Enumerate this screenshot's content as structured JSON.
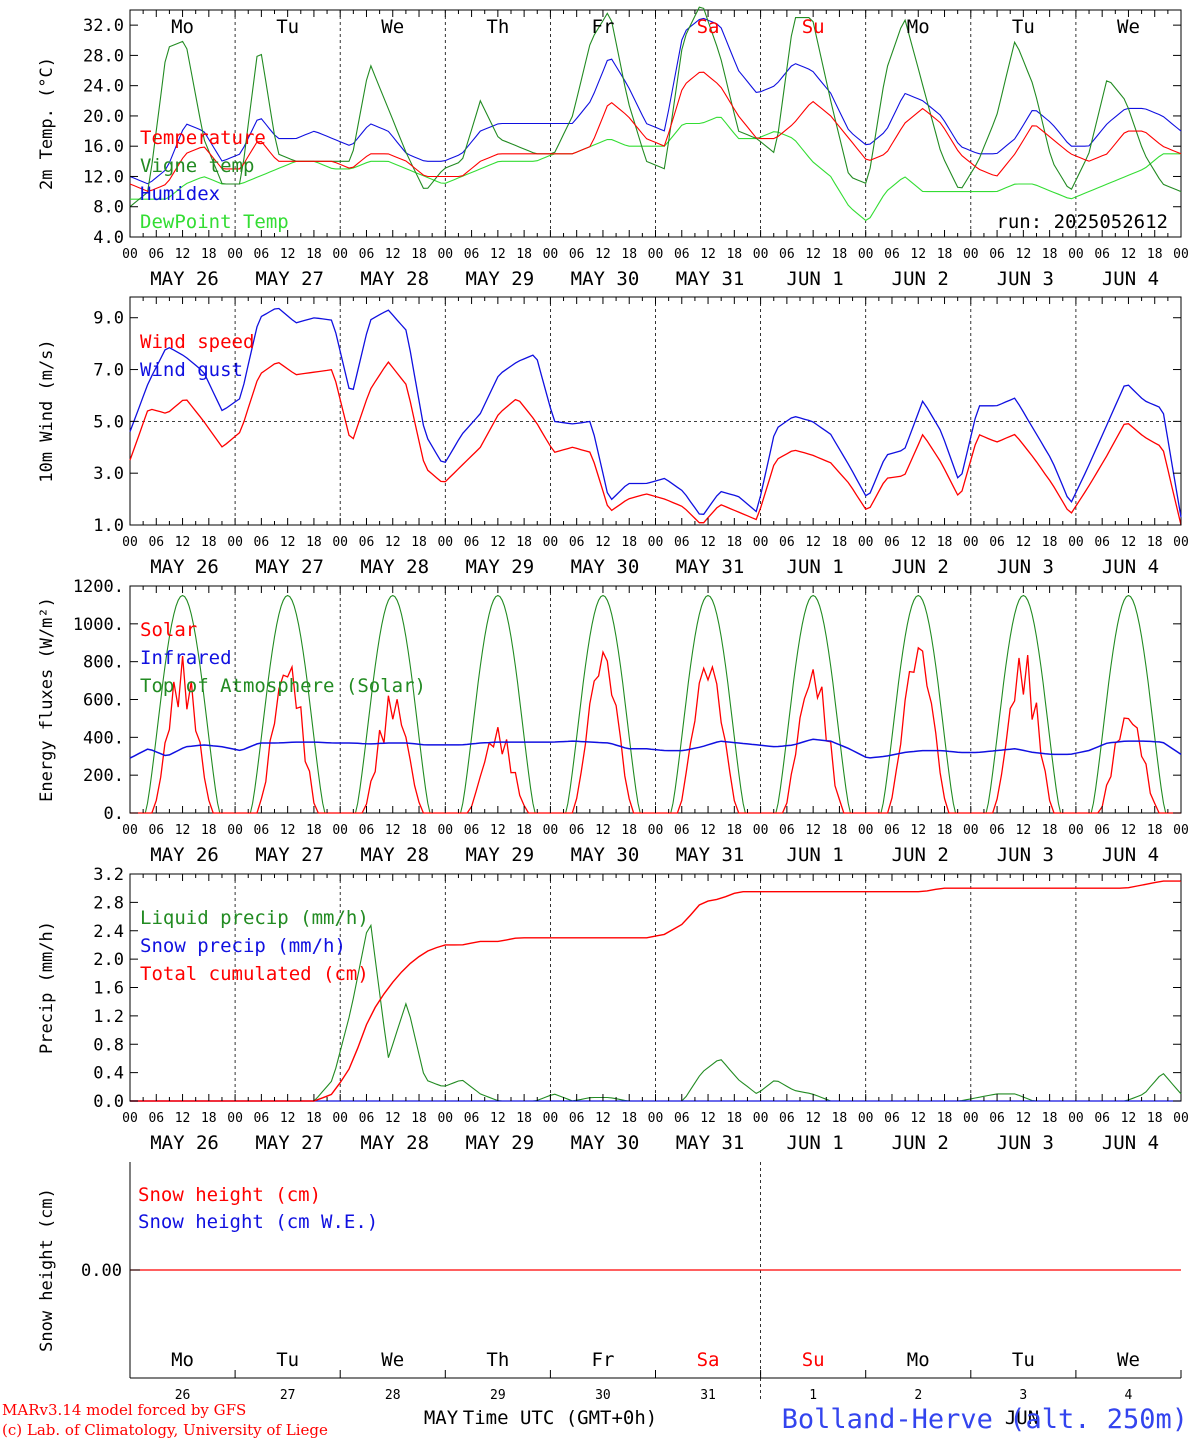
{
  "colors": {
    "red": "#ff0000",
    "green": "#228b22",
    "blue": "#1010e0",
    "lightgreen": "#33dd33",
    "axis": "#000000"
  },
  "days": {
    "weekdays": [
      "Mo",
      "Tu",
      "We",
      "Th",
      "Fr",
      "Sa",
      "Su",
      "Mo",
      "Tu",
      "We"
    ],
    "weekday_colors": [
      "#000000",
      "#000000",
      "#000000",
      "#000000",
      "#000000",
      "#ff0000",
      "#ff0000",
      "#000000",
      "#000000",
      "#000000"
    ],
    "dates": [
      "MAY 26",
      "MAY 27",
      "MAY 28",
      "MAY 29",
      "MAY 30",
      "MAY 31",
      "JUN  1",
      "JUN  2",
      "JUN  3",
      "JUN  4"
    ],
    "daynums": [
      "26",
      "27",
      "28",
      "29",
      "30",
      "31",
      "1",
      "2",
      "3",
      "4"
    ],
    "hours": [
      "00",
      "06",
      "12",
      "18"
    ],
    "last_hour": "00"
  },
  "bottom": {
    "month_left": "MAY",
    "month_right": "JUN",
    "xlabel": "Time UTC (GMT+0h)",
    "credit1": "MARv3.14 model forced by GFS",
    "credit2": "(c) Lab. of Climatology, University of Liege",
    "station": "Bolland-Herve (alt. 250m)"
  },
  "chart_data": [
    {
      "type": "line",
      "ylabel": "2m Temp. (°C)",
      "ylim": [
        4,
        34
      ],
      "yticks": [
        "4.0",
        "8.0",
        "12.0",
        "16.0",
        "20.0",
        "24.0",
        "28.0",
        "32.0"
      ],
      "x_hours": "0 to 240, every 6 h",
      "annotation": "run: 2025052612",
      "series": [
        {
          "name": "Temperature",
          "color": "#ff0000",
          "values": [
            11,
            10,
            11,
            15,
            16,
            13,
            13,
            17,
            14,
            14,
            14,
            14,
            13,
            15,
            15,
            14,
            12,
            12,
            12,
            14,
            15,
            15,
            15,
            15,
            15,
            16,
            22,
            20,
            17,
            16,
            24,
            26,
            24,
            20,
            17,
            17,
            19,
            22,
            20,
            17,
            14,
            15,
            19,
            21,
            19,
            15,
            13,
            12,
            15,
            19,
            17,
            15,
            14,
            15,
            18,
            18,
            16,
            15
          ]
        },
        {
          "name": "Vigne temp",
          "color": "#228b22",
          "values": [
            8,
            10,
            29,
            30,
            17,
            11,
            11,
            30,
            15,
            14,
            14,
            14,
            14,
            27,
            21,
            15,
            10,
            13,
            14,
            22,
            17,
            16,
            15,
            15,
            20,
            30,
            34,
            22,
            14,
            13,
            30,
            35,
            28,
            18,
            17,
            15,
            33,
            33,
            22,
            12,
            11,
            26,
            33,
            24,
            15,
            10,
            14,
            20,
            30,
            24,
            14,
            10,
            15,
            25,
            22,
            15,
            11,
            10
          ]
        },
        {
          "name": "Humidex",
          "color": "#1010e0",
          "values": [
            12,
            11,
            13,
            19,
            18,
            14,
            15,
            20,
            17,
            17,
            18,
            17,
            16,
            19,
            18,
            15,
            14,
            14,
            15,
            18,
            19,
            19,
            19,
            19,
            19,
            22,
            28,
            24,
            19,
            18,
            31,
            33,
            32,
            26,
            23,
            24,
            27,
            26,
            23,
            18,
            16,
            18,
            23,
            22,
            20,
            16,
            15,
            15,
            17,
            21,
            19,
            16,
            16,
            19,
            21,
            21,
            20,
            18
          ]
        },
        {
          "name": "DewPoint Temp",
          "color": "#33dd33",
          "values": [
            9,
            9,
            9,
            11,
            12,
            11,
            11,
            12,
            13,
            14,
            14,
            13,
            13,
            14,
            14,
            13,
            12,
            11,
            12,
            13,
            14,
            14,
            14,
            15,
            15,
            16,
            17,
            16,
            16,
            16,
            19,
            19,
            20,
            17,
            17,
            18,
            17,
            14,
            12,
            8,
            6,
            10,
            12,
            10,
            10,
            10,
            10,
            10,
            11,
            11,
            10,
            9,
            10,
            11,
            12,
            13,
            15,
            15
          ]
        }
      ]
    },
    {
      "type": "line",
      "ylabel": "10m Wind (m/s)",
      "ylim": [
        1,
        9.8
      ],
      "yticks": [
        "1.0",
        "3.0",
        "5.0",
        "7.0",
        "9.0"
      ],
      "series": [
        {
          "name": "Wind speed",
          "color": "#ff0000",
          "values": [
            3.5,
            5.5,
            5.3,
            5.9,
            5.0,
            4.0,
            4.6,
            6.8,
            7.3,
            6.8,
            6.9,
            7.0,
            4.1,
            6.2,
            7.3,
            6.4,
            3.2,
            2.6,
            3.3,
            4.0,
            5.3,
            5.9,
            5.0,
            3.8,
            4.0,
            3.8,
            1.5,
            2.0,
            2.2,
            2.0,
            1.7,
            1.0,
            1.8,
            1.5,
            1.2,
            3.5,
            3.9,
            3.7,
            3.4,
            2.6,
            1.5,
            2.8,
            2.9,
            4.5,
            3.4,
            2.0,
            4.5,
            4.2,
            4.5,
            3.6,
            2.6,
            1.4,
            2.5,
            3.7,
            5.0,
            4.4,
            4.0,
            1.0
          ]
        },
        {
          "name": "Wind gust",
          "color": "#1010e0",
          "values": [
            4.6,
            6.5,
            7.9,
            7.5,
            6.9,
            5.4,
            5.9,
            9.0,
            9.4,
            8.8,
            9.0,
            8.9,
            5.9,
            8.9,
            9.3,
            8.5,
            4.5,
            3.3,
            4.5,
            5.3,
            6.8,
            7.3,
            7.6,
            5.0,
            4.9,
            5.0,
            1.9,
            2.6,
            2.6,
            2.8,
            2.3,
            1.3,
            2.3,
            2.1,
            1.5,
            4.7,
            5.2,
            5.0,
            4.5,
            3.3,
            2.0,
            3.7,
            3.9,
            5.8,
            4.6,
            2.6,
            5.6,
            5.6,
            5.9,
            4.7,
            3.5,
            1.8,
            3.3,
            4.9,
            6.5,
            5.8,
            5.5,
            1.3
          ]
        }
      ]
    },
    {
      "type": "line",
      "ylabel": "Energy fluxes (W/m²)",
      "ylim": [
        0,
        1200
      ],
      "yticks": [
        "0.",
        "200.",
        "400.",
        "600.",
        "800.",
        "1000.",
        "1200."
      ],
      "series": [
        {
          "name": "Solar",
          "color": "#ff0000",
          "daily_peaks_w_m2": [
            830,
            840,
            650,
            460,
            860,
            820,
            800,
            900,
            870,
            560
          ]
        },
        {
          "name": "Infrared",
          "color": "#1010e0",
          "values": [
            290,
            340,
            300,
            350,
            360,
            350,
            330,
            370,
            370,
            375,
            375,
            370,
            370,
            365,
            370,
            370,
            360,
            360,
            360,
            370,
            375,
            375,
            375,
            375,
            380,
            375,
            370,
            340,
            340,
            330,
            330,
            350,
            380,
            370,
            360,
            350,
            360,
            390,
            380,
            340,
            290,
            300,
            320,
            330,
            330,
            320,
            320,
            330,
            340,
            320,
            310,
            310,
            330,
            370,
            380,
            380,
            375,
            310
          ]
        },
        {
          "name": "Top of Atmosphere (Solar)",
          "color": "#228b22",
          "daily_peak_w_m2": 1150
        }
      ]
    },
    {
      "type": "line",
      "ylabel": "Precip (mm/h)",
      "ylim": [
        0,
        3.2
      ],
      "yticks": [
        "0.0",
        "0.4",
        "0.8",
        "1.2",
        "1.6",
        "2.0",
        "2.4",
        "2.8",
        "3.2"
      ],
      "series": [
        {
          "name": "Liquid precip (mm/h)",
          "color": "#228b22",
          "values": [
            0,
            0,
            0,
            0,
            0,
            0,
            0,
            0,
            0,
            0,
            0,
            0.3,
            1.3,
            2.6,
            0.6,
            1.4,
            0.3,
            0.2,
            0.3,
            0.1,
            0,
            0,
            0,
            0.1,
            0,
            0.05,
            0.05,
            0,
            0,
            0,
            0,
            0.4,
            0.6,
            0.3,
            0.1,
            0.3,
            0.15,
            0.1,
            0,
            0,
            0,
            0,
            0,
            0,
            0,
            0,
            0.05,
            0.1,
            0.1,
            0,
            0,
            0,
            0,
            0,
            0,
            0.1,
            0.4,
            0.1
          ]
        },
        {
          "name": "Snow precip (mm/h)",
          "color": "#1010e0",
          "values": "0 everywhere"
        },
        {
          "name": "Total cumulated (cm)",
          "color": "#ff0000",
          "values": [
            0,
            0,
            0,
            0,
            0,
            0,
            0,
            0,
            0,
            0,
            0,
            0.1,
            0.5,
            1.2,
            1.6,
            1.9,
            2.1,
            2.2,
            2.2,
            2.25,
            2.25,
            2.3,
            2.3,
            2.3,
            2.3,
            2.3,
            2.3,
            2.3,
            2.3,
            2.35,
            2.5,
            2.8,
            2.85,
            2.95,
            2.95,
            2.95,
            2.95,
            2.95,
            2.95,
            2.95,
            2.95,
            2.95,
            2.95,
            2.95,
            3.0,
            3.0,
            3.0,
            3.0,
            3.0,
            3.0,
            3.0,
            3.0,
            3.0,
            3.0,
            3.0,
            3.05,
            3.1,
            3.1
          ]
        }
      ]
    },
    {
      "type": "line",
      "ylabel": "Snow height (cm)",
      "yticks": [
        "0.00"
      ],
      "series": [
        {
          "name": "Snow height (cm)",
          "color": "#ff0000",
          "values": "0.00 constant"
        },
        {
          "name": "Snow height (cm W.E.)",
          "color": "#1010e0",
          "values": "0.00 constant"
        }
      ]
    }
  ]
}
